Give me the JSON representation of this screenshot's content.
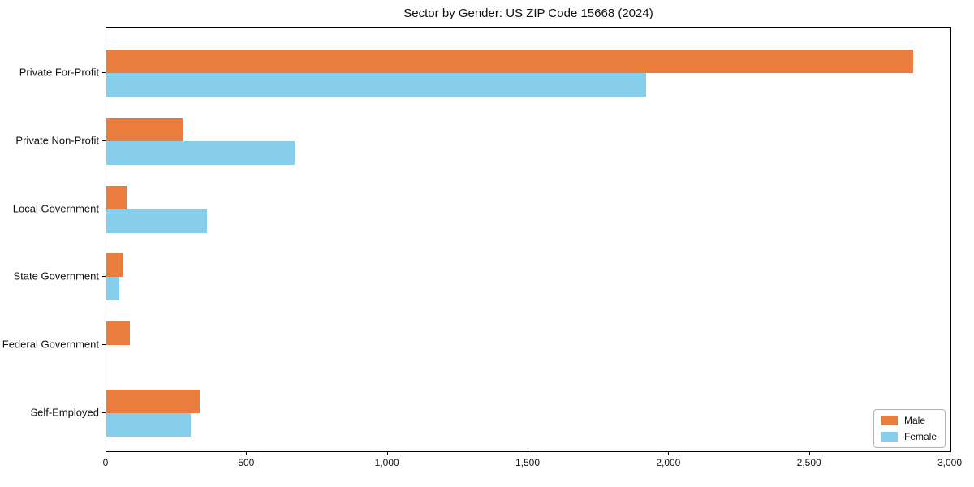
{
  "title": "Sector by Gender: US ZIP Code 15668 (2024)",
  "colors": {
    "male": "#e87d3e",
    "female": "#87ceeb",
    "axis": "#000000",
    "text": "#111111",
    "legend_border": "#b4b4b4",
    "background": "#ffffff"
  },
  "chart_data": {
    "type": "bar",
    "orientation": "horizontal",
    "title": "Sector by Gender: US ZIP Code 15668 (2024)",
    "categories": [
      "Private For-Profit",
      "Private Non-Profit",
      "Local Government",
      "State Government",
      "Federal Government",
      "Self-Employed"
    ],
    "series": [
      {
        "name": "Male",
        "color": "#e87d3e",
        "values": [
          2866,
          275,
          73,
          57,
          83,
          331
        ]
      },
      {
        "name": "Female",
        "color": "#87ceeb",
        "values": [
          1918,
          670,
          358,
          46,
          0,
          301
        ]
      }
    ],
    "xlabel": "",
    "ylabel": "",
    "xlim": [
      0,
      3000
    ],
    "x_ticks": [
      0,
      500,
      1000,
      1500,
      2000,
      2500,
      3000
    ],
    "x_tick_labels": [
      "0",
      "500",
      "1,000",
      "1,500",
      "2,000",
      "2,500",
      "3,000"
    ],
    "grid": false,
    "legend_position": "lower right"
  }
}
